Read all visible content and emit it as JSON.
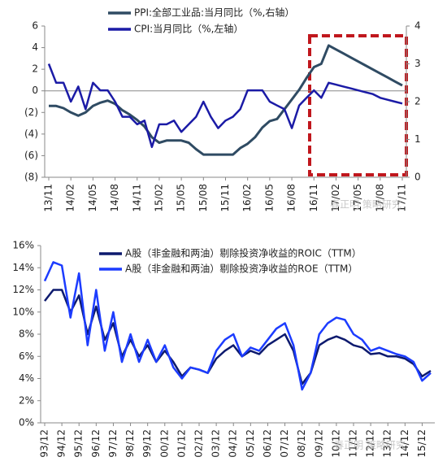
{
  "chart_data": [
    {
      "type": "line",
      "categories": [
        "13/11",
        null,
        null,
        "14/02",
        null,
        null,
        "14/05",
        null,
        null,
        "14/08",
        null,
        null,
        "14/11",
        null,
        null,
        "15/02",
        null,
        null,
        "15/05",
        null,
        null,
        "15/08",
        null,
        null,
        "15/11",
        null,
        null,
        "16/02",
        null,
        null,
        "16/05",
        null,
        null,
        "16/08",
        null,
        null,
        "16/11",
        null,
        null,
        "17/02",
        null,
        null,
        "17/05",
        null,
        null,
        "17/08",
        null,
        null,
        "17/11"
      ],
      "series": [
        {
          "name": "PPI:全部工业品:当月同比（%,右轴）",
          "color": "#2f4b63",
          "values": [
            -1.4,
            -1.4,
            -1.6,
            -2.0,
            -2.3,
            -2.0,
            -1.4,
            -1.1,
            -0.9,
            -1.2,
            -1.8,
            -2.2,
            -2.7,
            -3.3,
            -4.3,
            -4.8,
            -4.6,
            -4.6,
            -4.6,
            -4.8,
            -5.4,
            -5.9,
            -5.9,
            -5.9,
            -5.9,
            -5.9,
            -5.3,
            -4.9,
            -4.3,
            -3.4,
            -2.8,
            -2.6,
            -1.7,
            -0.8,
            0.1,
            1.2,
            2.2,
            2.5,
            4.2,
            3.83,
            3.46,
            3.09,
            2.72,
            2.35,
            1.98,
            1.61,
            1.24,
            0.87,
            0.5
          ]
        },
        {
          "name": "CPI:当月同比（%,左轴）",
          "color": "#1b1ba6",
          "axis": "y2",
          "values": [
            3.0,
            2.5,
            2.5,
            2.0,
            2.4,
            1.8,
            2.5,
            2.3,
            2.3,
            2.0,
            1.6,
            1.6,
            1.4,
            1.5,
            0.8,
            1.4,
            1.4,
            1.5,
            1.2,
            1.4,
            1.6,
            2.0,
            1.6,
            1.3,
            1.5,
            1.6,
            1.8,
            2.3,
            2.3,
            2.3,
            2.0,
            1.9,
            1.8,
            1.3,
            1.9,
            2.1,
            2.3,
            2.1,
            2.5,
            2.45,
            2.4,
            2.35,
            2.3,
            2.25,
            2.2,
            2.1,
            2.05,
            2.0,
            1.95
          ]
        }
      ],
      "ylim": [
        -8,
        6
      ],
      "yticks": [
        {
          "value": -8,
          "label": "(8)"
        },
        {
          "value": -6,
          "label": "(6)"
        },
        {
          "value": -4,
          "label": "(4)"
        },
        {
          "value": -2,
          "label": "(2)"
        },
        0,
        2,
        4,
        6
      ],
      "y2lim": [
        0,
        4
      ],
      "y2ticks": [
        0,
        1,
        2,
        3,
        4
      ],
      "grid": false,
      "watermark": "春正明 策略研究"
    },
    {
      "type": "line",
      "categories": [
        "93/12",
        null,
        "94/12",
        null,
        "95/12",
        null,
        "96/12",
        null,
        "97/12",
        null,
        "98/12",
        null,
        "99/12",
        null,
        "00/12",
        null,
        "01/12",
        null,
        "02/12",
        null,
        "03/12",
        null,
        "04/12",
        null,
        "05/12",
        null,
        "06/12",
        null,
        "07/12",
        null,
        "08/12",
        null,
        "09/12",
        null,
        "10/12",
        null,
        "11/12",
        null,
        "12/12",
        null,
        "13/12",
        null,
        "14/12",
        null,
        "15/12",
        null
      ],
      "series": [
        {
          "name": "A股（非金融和两油）剔除投资净收益的ROIC（TTM）",
          "color": "#0d1a6e",
          "values": [
            11.0,
            12.0,
            12.0,
            10.0,
            11.5,
            8.0,
            10.5,
            7.5,
            9.0,
            6.0,
            7.5,
            6.0,
            7.0,
            5.5,
            6.5,
            5.5,
            4.2,
            5.0,
            4.8,
            4.5,
            5.8,
            6.5,
            7.0,
            6.0,
            6.5,
            6.2,
            7.0,
            7.5,
            8.0,
            6.5,
            3.5,
            4.5,
            7.0,
            7.5,
            7.8,
            7.5,
            7.0,
            6.8,
            6.2,
            6.3,
            6.0,
            6.0,
            5.8,
            5.3,
            4.2,
            4.7
          ]
        },
        {
          "name": "A股（非金融和两油）剔除投资净收益的ROE（TTM）",
          "color": "#1c3cff",
          "values": [
            12.8,
            14.5,
            14.2,
            9.5,
            13.5,
            7.0,
            12.0,
            6.5,
            10.0,
            5.5,
            8.0,
            5.5,
            7.5,
            5.5,
            7.0,
            5.0,
            4.0,
            5.0,
            4.8,
            4.5,
            6.5,
            7.5,
            8.0,
            6.0,
            6.8,
            6.5,
            7.5,
            8.5,
            9.0,
            7.0,
            3.0,
            4.5,
            8.0,
            9.0,
            9.5,
            9.3,
            8.0,
            7.5,
            6.5,
            6.8,
            6.5,
            6.2,
            6.0,
            5.5,
            3.8,
            4.5
          ]
        }
      ],
      "ylim": [
        0,
        16
      ],
      "yticks": [
        {
          "value": 0,
          "label": "0%"
        },
        {
          "value": 2,
          "label": "2%"
        },
        {
          "value": 4,
          "label": "4%"
        },
        {
          "value": 6,
          "label": "6%"
        },
        {
          "value": 8,
          "label": "8%"
        },
        {
          "value": 10,
          "label": "10%"
        },
        {
          "value": 12,
          "label": "12%"
        },
        {
          "value": 14,
          "label": "14%"
        },
        {
          "value": 16,
          "label": "16%"
        }
      ],
      "grid": false,
      "watermark": "春正明 策略研究"
    }
  ]
}
